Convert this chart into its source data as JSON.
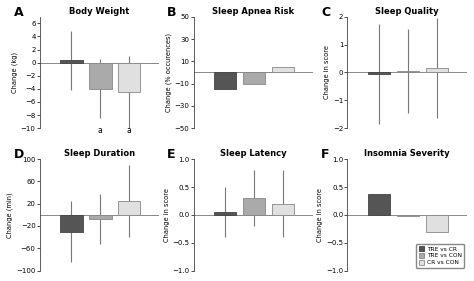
{
  "panels": [
    {
      "label": "A",
      "title": "Body Weight",
      "ylabel": "Change (kg)",
      "ylim": [
        -10,
        7
      ],
      "yticks": [
        -10,
        -8,
        -6,
        -4,
        -2,
        0,
        2,
        4,
        6
      ],
      "bars": [
        0.4,
        -4.0,
        -4.5
      ],
      "errors": [
        4.5,
        4.5,
        5.5
      ],
      "annotations": [
        "",
        "a",
        "a"
      ]
    },
    {
      "label": "B",
      "title": "Sleep Apnea Risk",
      "ylabel": "Change (% occurences)",
      "ylim": [
        -50,
        50
      ],
      "yticks": [
        -50,
        -30,
        -10,
        10,
        30,
        50
      ],
      "bars": [
        -15,
        -10,
        5
      ],
      "errors": [
        0,
        0,
        0
      ],
      "annotations": []
    },
    {
      "label": "C",
      "title": "Sleep Quality",
      "ylabel": "Change in score",
      "ylim": [
        -2,
        2
      ],
      "yticks": [
        -2,
        -1,
        0,
        1,
        2
      ],
      "bars": [
        -0.05,
        0.05,
        0.15
      ],
      "errors": [
        1.8,
        1.5,
        1.8
      ],
      "annotations": []
    },
    {
      "label": "D",
      "title": "Sleep Duration",
      "ylabel": "Change (min)",
      "ylim": [
        -100,
        100
      ],
      "yticks": [
        -100,
        -60,
        -20,
        20,
        60,
        100
      ],
      "bars": [
        -30,
        -8,
        25
      ],
      "errors": [
        55,
        45,
        65
      ],
      "annotations": []
    },
    {
      "label": "E",
      "title": "Sleep Latency",
      "ylabel": "Change in score",
      "ylim": [
        -1,
        1
      ],
      "yticks": [
        -1,
        -0.5,
        0,
        0.5,
        1
      ],
      "bars": [
        0.05,
        0.3,
        0.2
      ],
      "errors": [
        0.45,
        0.5,
        0.6
      ],
      "annotations": []
    },
    {
      "label": "F",
      "title": "Insomnia Severity",
      "ylabel": "Change in score",
      "ylim": [
        -1,
        1
      ],
      "yticks": [
        -1,
        -0.5,
        0,
        0.5,
        1
      ],
      "bars": [
        0.38,
        -0.02,
        -0.3
      ],
      "errors": [
        0,
        0,
        0
      ],
      "annotations": []
    }
  ],
  "bar_colors": [
    "#555555",
    "#aaaaaa",
    "#e0e0e0"
  ],
  "bar_edgecolors": [
    "#444444",
    "#888888",
    "#888888"
  ],
  "legend_labels": [
    "TRE vs CR",
    "TRE vs CON",
    "CR vs CON"
  ],
  "bar_width": 0.18,
  "bar_positions": [
    0.55,
    0.78,
    1.01
  ]
}
